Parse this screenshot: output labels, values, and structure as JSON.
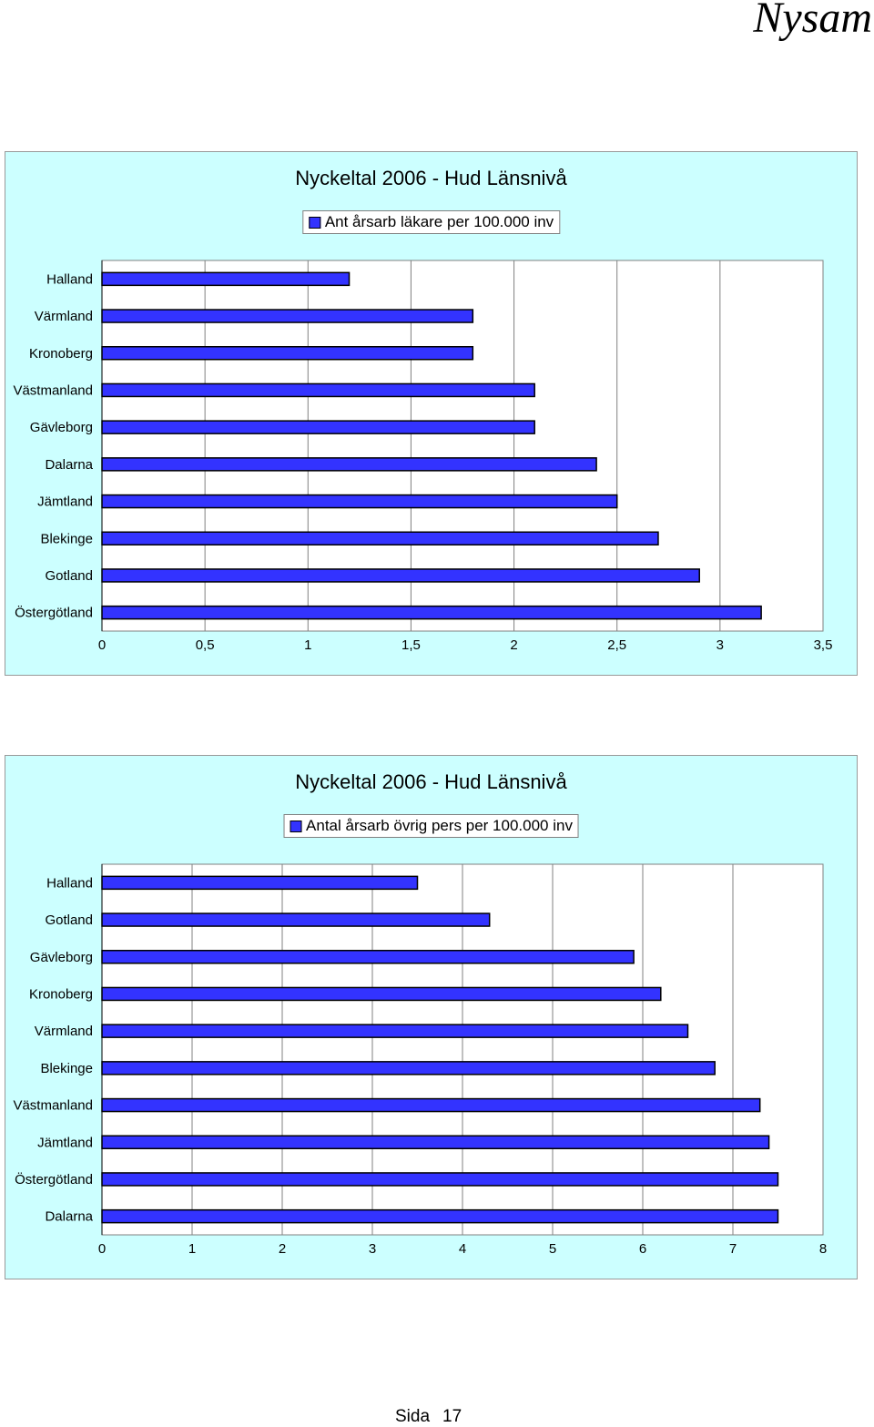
{
  "brand": "Nysam",
  "footer": {
    "label": "Sida",
    "page": "17"
  },
  "chart_data": [
    {
      "type": "bar",
      "orientation": "horizontal",
      "title": "Nyckeltal 2006  -  Hud Länsnivå",
      "series": [
        {
          "name": "Ant årsarb läkare per 100.000 inv",
          "values": [
            1.2,
            1.8,
            1.8,
            2.1,
            2.1,
            2.4,
            2.5,
            2.7,
            2.9,
            3.2
          ]
        }
      ],
      "categories": [
        "Halland",
        "Värmland",
        "Kronoberg",
        "Västmanland",
        "Gävleborg",
        "Dalarna",
        "Jämtland",
        "Blekinge",
        "Gotland",
        "Östergötland"
      ],
      "xlim": [
        0,
        3.5
      ],
      "ticks": [
        "0",
        "0,5",
        "1",
        "1,5",
        "2",
        "2,5",
        "3",
        "3,5"
      ],
      "tick_values": [
        0,
        0.5,
        1,
        1.5,
        2,
        2.5,
        3,
        3.5
      ],
      "grid": true,
      "legend_position": "top",
      "colors": {
        "bar": "#3333ff",
        "background": "#ccffff",
        "plot": "#ffffff"
      }
    },
    {
      "type": "bar",
      "orientation": "horizontal",
      "title": "Nyckeltal 2006  -  Hud Länsnivå",
      "series": [
        {
          "name": "Antal årsarb övrig pers per 100.000 inv",
          "values": [
            3.5,
            4.3,
            5.9,
            6.2,
            6.5,
            6.8,
            7.3,
            7.4,
            7.5,
            7.5
          ]
        }
      ],
      "categories": [
        "Halland",
        "Gotland",
        "Gävleborg",
        "Kronoberg",
        "Värmland",
        "Blekinge",
        "Västmanland",
        "Jämtland",
        "Östergötland",
        "Dalarna"
      ],
      "xlim": [
        0,
        8
      ],
      "ticks": [
        "0",
        "1",
        "2",
        "3",
        "4",
        "5",
        "6",
        "7",
        "8"
      ],
      "tick_values": [
        0,
        1,
        2,
        3,
        4,
        5,
        6,
        7,
        8
      ],
      "grid": true,
      "legend_position": "top",
      "colors": {
        "bar": "#3333ff",
        "background": "#ccffff",
        "plot": "#ffffff"
      }
    }
  ]
}
